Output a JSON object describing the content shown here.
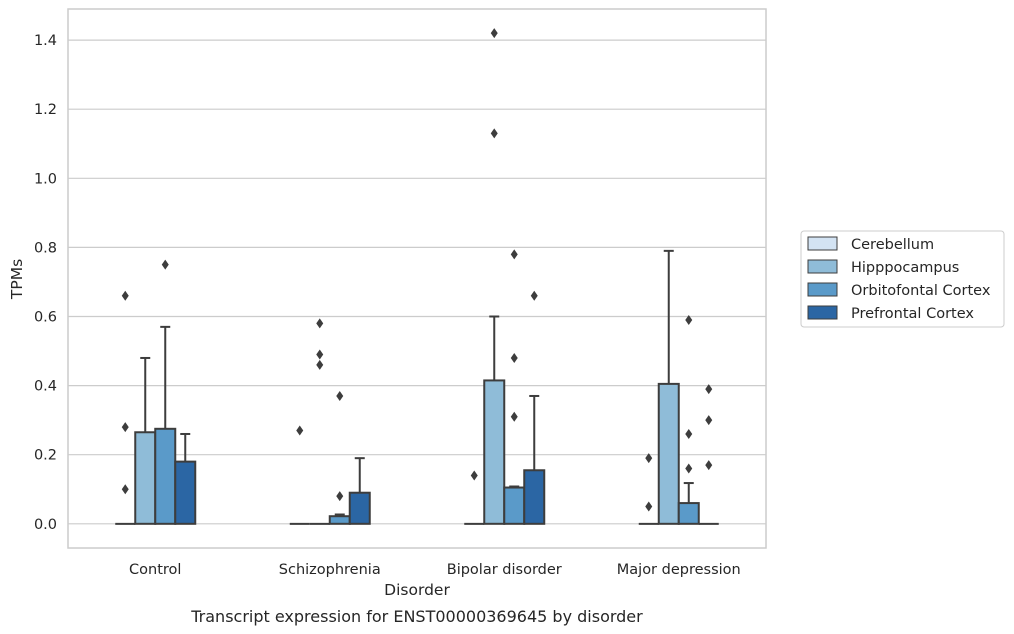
{
  "chart_data": {
    "type": "bar",
    "caption": "Transcript expression for ENST00000369645 by disorder",
    "xlabel": "Disorder",
    "ylabel": "TPMs",
    "ylim": [
      -0.07,
      1.49
    ],
    "yticks": [
      0.0,
      0.2,
      0.4,
      0.6,
      0.8,
      1.0,
      1.2,
      1.4
    ],
    "ytick_labels": [
      "0.0",
      "0.2",
      "0.4",
      "0.6",
      "0.8",
      "1.0",
      "1.2",
      "1.4"
    ],
    "grid": true,
    "legend_placement": "right",
    "categories": [
      "Control",
      "Schizophrenia",
      "Bipolar disorder",
      "Major depression"
    ],
    "series": [
      {
        "name": "Cerebellum",
        "color": "#d3e3f3",
        "values": [
          0.0,
          0.0,
          0.0,
          0.0
        ],
        "error_upper": [
          null,
          null,
          null,
          null
        ],
        "outliers": [
          [
            0.1,
            0.28,
            0.66
          ],
          [
            0.27
          ],
          [
            0.14
          ],
          [
            0.05,
            0.19
          ]
        ]
      },
      {
        "name": "Hipppocampus",
        "color": "#8fbcd8",
        "values": [
          0.265,
          0.0,
          0.415,
          0.405
        ],
        "error_upper": [
          0.48,
          null,
          0.6,
          0.79
        ],
        "outliers": [
          [],
          [
            0.46,
            0.49,
            0.58
          ],
          [
            1.13,
            1.42
          ],
          []
        ]
      },
      {
        "name": "Orbitofontal Cortex",
        "color": "#5a9ac9",
        "values": [
          0.275,
          0.022,
          0.105,
          0.06
        ],
        "error_upper": [
          0.57,
          0.027,
          0.108,
          0.118
        ],
        "outliers": [
          [
            0.75
          ],
          [
            0.08,
            0.37
          ],
          [
            0.31,
            0.48,
            0.78
          ],
          [
            0.16,
            0.26,
            0.59
          ]
        ]
      },
      {
        "name": "Prefrontal Cortex",
        "color": "#2b66a4",
        "values": [
          0.18,
          0.09,
          0.155,
          0.0
        ],
        "error_upper": [
          0.26,
          0.19,
          0.37,
          null
        ],
        "outliers": [
          [],
          [],
          [
            0.66
          ],
          [
            0.17,
            0.3,
            0.39
          ]
        ]
      }
    ]
  }
}
